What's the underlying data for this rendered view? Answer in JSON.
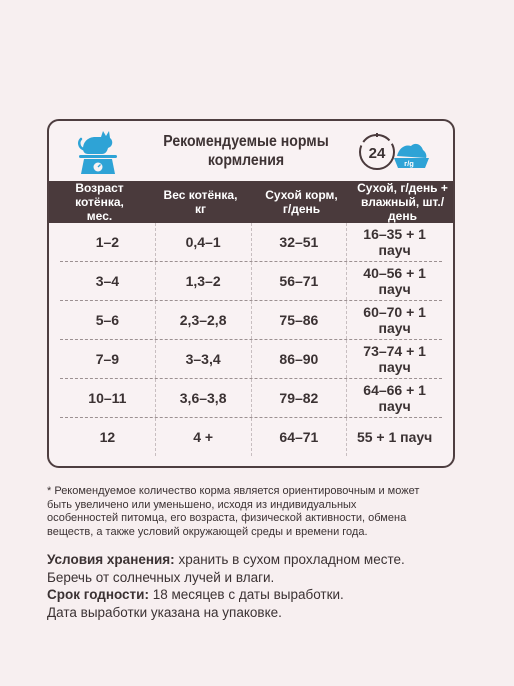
{
  "header": {
    "title_line1": "Рекомендуемые нормы",
    "title_line2": "кормления",
    "badge_number": "24",
    "badge_unit": "г/g"
  },
  "table": {
    "headers": [
      "Возраст котёнка,\nмес.",
      "Вес котёнка,\nкг",
      "Сухой корм,\nг/день",
      "Сухой, г/день +\nвлажный, шт./день"
    ],
    "rows": [
      [
        "1–2",
        "0,4–1",
        "32–51",
        "16–35 + 1 пауч"
      ],
      [
        "3–4",
        "1,3–2",
        "56–71",
        "40–56 + 1 пауч"
      ],
      [
        "5–6",
        "2,3–2,8",
        "75–86",
        "60–70 + 1 пауч"
      ],
      [
        "7–9",
        "3–3,4",
        "86–90",
        "73–74 + 1 пауч"
      ],
      [
        "10–11",
        "3,6–3,8",
        "79–82",
        "64–66 + 1 пауч"
      ],
      [
        "12",
        "4 +",
        "64–71",
        "55 + 1 пауч"
      ]
    ]
  },
  "footnote": "* Рекомендуемое количество корма является ориентировочным и может быть увеличено или уменьшено, исходя из индивидуальных особенностей питомца, его возраста, физической активности, обмена веществ, а также условий окружающей среды и времени года.",
  "storage": {
    "label": "Условия хранения:",
    "text1": " хранить в сухом прохладном месте.",
    "text2": "Беречь от солнечных лучей и влаги."
  },
  "shelf_life": {
    "label": "Срок годности:",
    "text1": " 18 месяцев с даты выработки.",
    "text2": "Дата выработки указана на упаковке."
  },
  "colors": {
    "header_band": "#4a3a3c",
    "accent_blue": "#2ea3d6",
    "background": "#f7eff0"
  },
  "icons": [
    "cat-on-scale-icon",
    "feeding-clock-bowl-icon"
  ]
}
